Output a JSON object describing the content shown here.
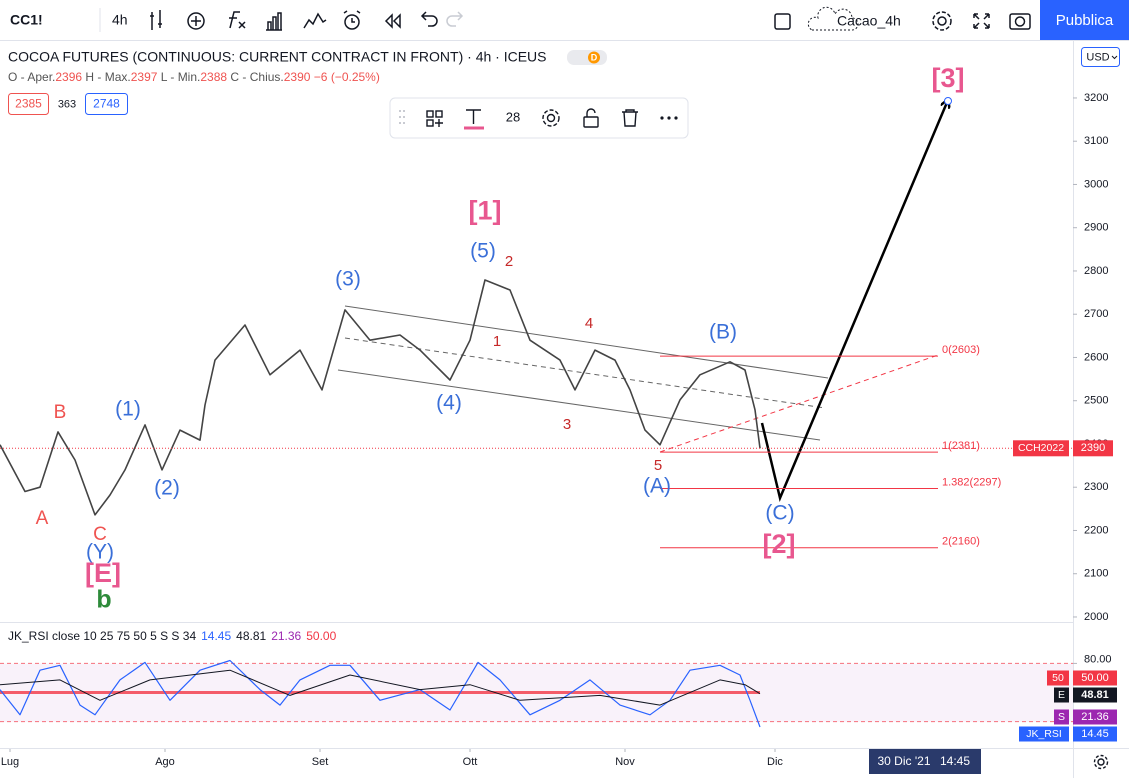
{
  "toolbar": {
    "symbol": "CC1!",
    "interval": "4h",
    "layout": "Cacao_4h",
    "publish": "Pubblica"
  },
  "header": {
    "title": "COCOA FUTURES (CONTINUOUS: CURRENT CONTRACT IN FRONT) · 4h · ICEUS",
    "badge": "D",
    "ohlc": [
      {
        "label": "O - Aper.",
        "value": "2396"
      },
      {
        "label": "H - Max.",
        "value": "2397"
      },
      {
        "label": "L - Min.",
        "value": "2388"
      },
      {
        "label": "C - Chius.",
        "value": "2390"
      }
    ],
    "change": "−6 (−0.25%)",
    "buttons": [
      "2385",
      "363",
      "2748"
    ]
  },
  "drawing_toolbar": {
    "font_size": "28"
  },
  "currency": "USD",
  "footer": {
    "date": "30 Dic '21",
    "time": "14:45"
  },
  "chart_data": [
    {
      "type": "line",
      "color": "#444444",
      "x": [
        -2,
        3,
        6,
        9.6,
        13,
        17,
        20,
        23,
        27,
        30.4,
        34,
        38,
        39,
        41,
        47,
        52,
        58,
        62.4,
        67,
        72,
        78,
        82,
        88,
        92,
        95,
        100,
        104,
        110,
        113,
        117,
        121,
        124,
        127,
        130,
        134,
        138,
        144,
        147,
        149,
        150
      ],
      "values": [
        2398,
        2290,
        2300,
        2428,
        2363,
        2236,
        2282,
        2340,
        2444,
        2340,
        2432,
        2409,
        2490,
        2594,
        2675,
        2560,
        2617,
        2525,
        2710,
        2640,
        2652,
        2617,
        2548,
        2640,
        2779,
        2756,
        2640,
        2594,
        2525,
        2617,
        2594,
        2525,
        2432,
        2398,
        2502,
        2560,
        2590,
        2571,
        2479,
        2390
      ],
      "xlim": [
        -2,
        212.6
      ],
      "ylim": [
        1993,
        3334
      ],
      "xticks": [
        {
          "value": 0,
          "label": "Lug"
        },
        {
          "value": 31,
          "label": "Ago"
        },
        {
          "value": 62,
          "label": "Set"
        },
        {
          "value": 92,
          "label": "Ott"
        },
        {
          "value": 123,
          "label": "Nov"
        },
        {
          "value": 153,
          "label": "Dic"
        }
      ],
      "yticks": [
        2000,
        2100,
        2200,
        2300,
        2400,
        2500,
        2600,
        2700,
        2800,
        2900,
        3000,
        3100,
        3200
      ],
      "last_price": 2390,
      "last_symbol": "CCH2022",
      "fib_levels": [
        {
          "value": 2603,
          "label": "0(2603)"
        },
        {
          "value": 2381,
          "label": "1(2381)"
        },
        {
          "value": 2297,
          "label": "1.382(2297)"
        },
        {
          "value": 2160,
          "label": "2(2160)"
        }
      ],
      "fib_color": "#f23645",
      "annotations": [
        {
          "text": "A",
          "color": "#ef5350",
          "x": 6.4,
          "y": 2227
        },
        {
          "text": "B",
          "color": "#ef5350",
          "x": 10,
          "y": 2472
        },
        {
          "text": "C",
          "color": "#ef5350",
          "x": 18,
          "y": 2190
        },
        {
          "text": "(Y)",
          "color": "#3a6fd8",
          "x": 18,
          "y": 2148
        },
        {
          "text": "[E]",
          "color": "#e8578f",
          "x": 18.6,
          "y": 2097
        },
        {
          "text": "b",
          "color": "#2e8b3a",
          "x": 18.8,
          "y": 2037
        },
        {
          "text": "(1)",
          "color": "#3a6fd8",
          "x": 23.6,
          "y": 2479
        },
        {
          "text": "(2)",
          "color": "#3a6fd8",
          "x": 31.4,
          "y": 2296
        },
        {
          "text": "(3)",
          "color": "#3a6fd8",
          "x": 67.6,
          "y": 2779
        },
        {
          "text": "(4)",
          "color": "#3a6fd8",
          "x": 87.8,
          "y": 2492
        },
        {
          "text": "[1]",
          "color": "#e8578f",
          "x": 95,
          "y": 2936
        },
        {
          "text": "(5)",
          "color": "#3a6fd8",
          "x": 94.6,
          "y": 2844
        },
        {
          "text": "2",
          "color": "#c62828",
          "x": 99.8,
          "y": 2821
        },
        {
          "text": "1",
          "color": "#c62828",
          "x": 97.4,
          "y": 2636
        },
        {
          "text": "4",
          "color": "#c62828",
          "x": 115.8,
          "y": 2677
        },
        {
          "text": "3",
          "color": "#c62828",
          "x": 111.4,
          "y": 2444
        },
        {
          "text": "5",
          "color": "#c62828",
          "x": 129.6,
          "y": 2349
        },
        {
          "text": "(A)",
          "color": "#3a6fd8",
          "x": 129.4,
          "y": 2301
        },
        {
          "text": "(B)",
          "color": "#3a6fd8",
          "x": 142.6,
          "y": 2657
        },
        {
          "text": "(C)",
          "color": "#3a6fd8",
          "x": 154,
          "y": 2238
        },
        {
          "text": "[2]",
          "color": "#e8578f",
          "x": 153.8,
          "y": 2164
        },
        {
          "text": "[3]",
          "color": "#e8578f",
          "x": 187.6,
          "y": 3242
        }
      ]
    },
    {
      "type": "line",
      "title": "JK_RSI close 10 25 75 50 5 S S 34",
      "xlim": [
        -2,
        212.6
      ],
      "ylim": [
        0,
        100
      ],
      "yticks": [
        {
          "value": 80,
          "label": "80.00"
        }
      ],
      "levels": [
        80,
        50,
        20
      ],
      "series": [
        {
          "name": "JK_RSI",
          "color": "#2962ff",
          "x": [
            -2,
            2,
            6,
            10,
            14,
            17,
            22,
            27,
            32,
            38,
            44,
            50,
            54,
            58,
            64,
            68,
            74,
            82,
            88,
            93.6,
            98,
            104,
            110,
            116,
            122,
            128,
            132,
            136,
            142,
            146,
            148,
            150
          ],
          "values": [
            53,
            27,
            73,
            78,
            37,
            27,
            63,
            81,
            42,
            73,
            83,
            53,
            37,
            63,
            78,
            78,
            42,
            53,
            32,
            81,
            63,
            27,
            42,
            63,
            37,
            27,
            42,
            73,
            78,
            68,
            42,
            14.45
          ]
        },
        {
          "name": "E",
          "color": "#131722",
          "x": [
            -2,
            10,
            18,
            28,
            44,
            56,
            68,
            82,
            92,
            102,
            118,
            130,
            142,
            147,
            150
          ],
          "values": [
            58,
            63,
            42,
            63,
            73,
            47,
            68,
            53,
            58,
            42,
            47,
            37,
            63,
            58,
            48.81
          ]
        }
      ],
      "legend_values": [
        {
          "value": 14.45,
          "label": "14.45",
          "color": "#2962ff",
          "tag": "JK_RSI"
        },
        {
          "value": 48.81,
          "label": "48.81",
          "color": "#131722",
          "tag": "E"
        },
        {
          "value": 21.36,
          "label": "21.36",
          "color": "#9c27b0",
          "tag": "S"
        },
        {
          "value": 50,
          "label": "50.00",
          "color": "#f23645",
          "tag": "50"
        }
      ]
    }
  ]
}
